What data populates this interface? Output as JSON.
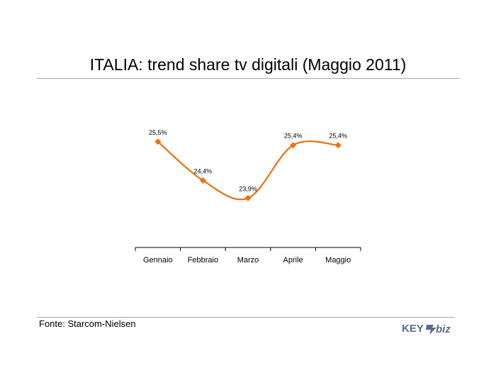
{
  "title": "ITALIA: trend share tv digitali (Maggio 2011)",
  "source": "Fonte: Starcom-Nielsen",
  "logo": {
    "text_key": "KEY",
    "text_biz": "biz",
    "icon": "key4biz-logo"
  },
  "colors": {
    "series": "#ec7011",
    "axis": "#000000",
    "rule": "#a6a6a6",
    "logo": "#5a6b8c"
  },
  "chart_data": {
    "type": "line",
    "title": "ITALIA: trend share tv digitali (Maggio 2011)",
    "categories": [
      "Gennaio",
      "Febbraio",
      "Marzo",
      "Aprile",
      "Maggio"
    ],
    "series": [
      {
        "values": [
          25.5,
          24.4,
          23.9,
          25.4,
          25.4
        ],
        "labels": [
          "25,5%",
          "24,4%",
          "23,9%",
          "25,4%",
          "25,4%"
        ]
      }
    ],
    "smooth": true,
    "marker": "diamond",
    "grid": false,
    "legend": "none",
    "y_axis_visible": false,
    "ylim": [
      22.5,
      26.5
    ],
    "xlabel": "",
    "ylabel": ""
  }
}
